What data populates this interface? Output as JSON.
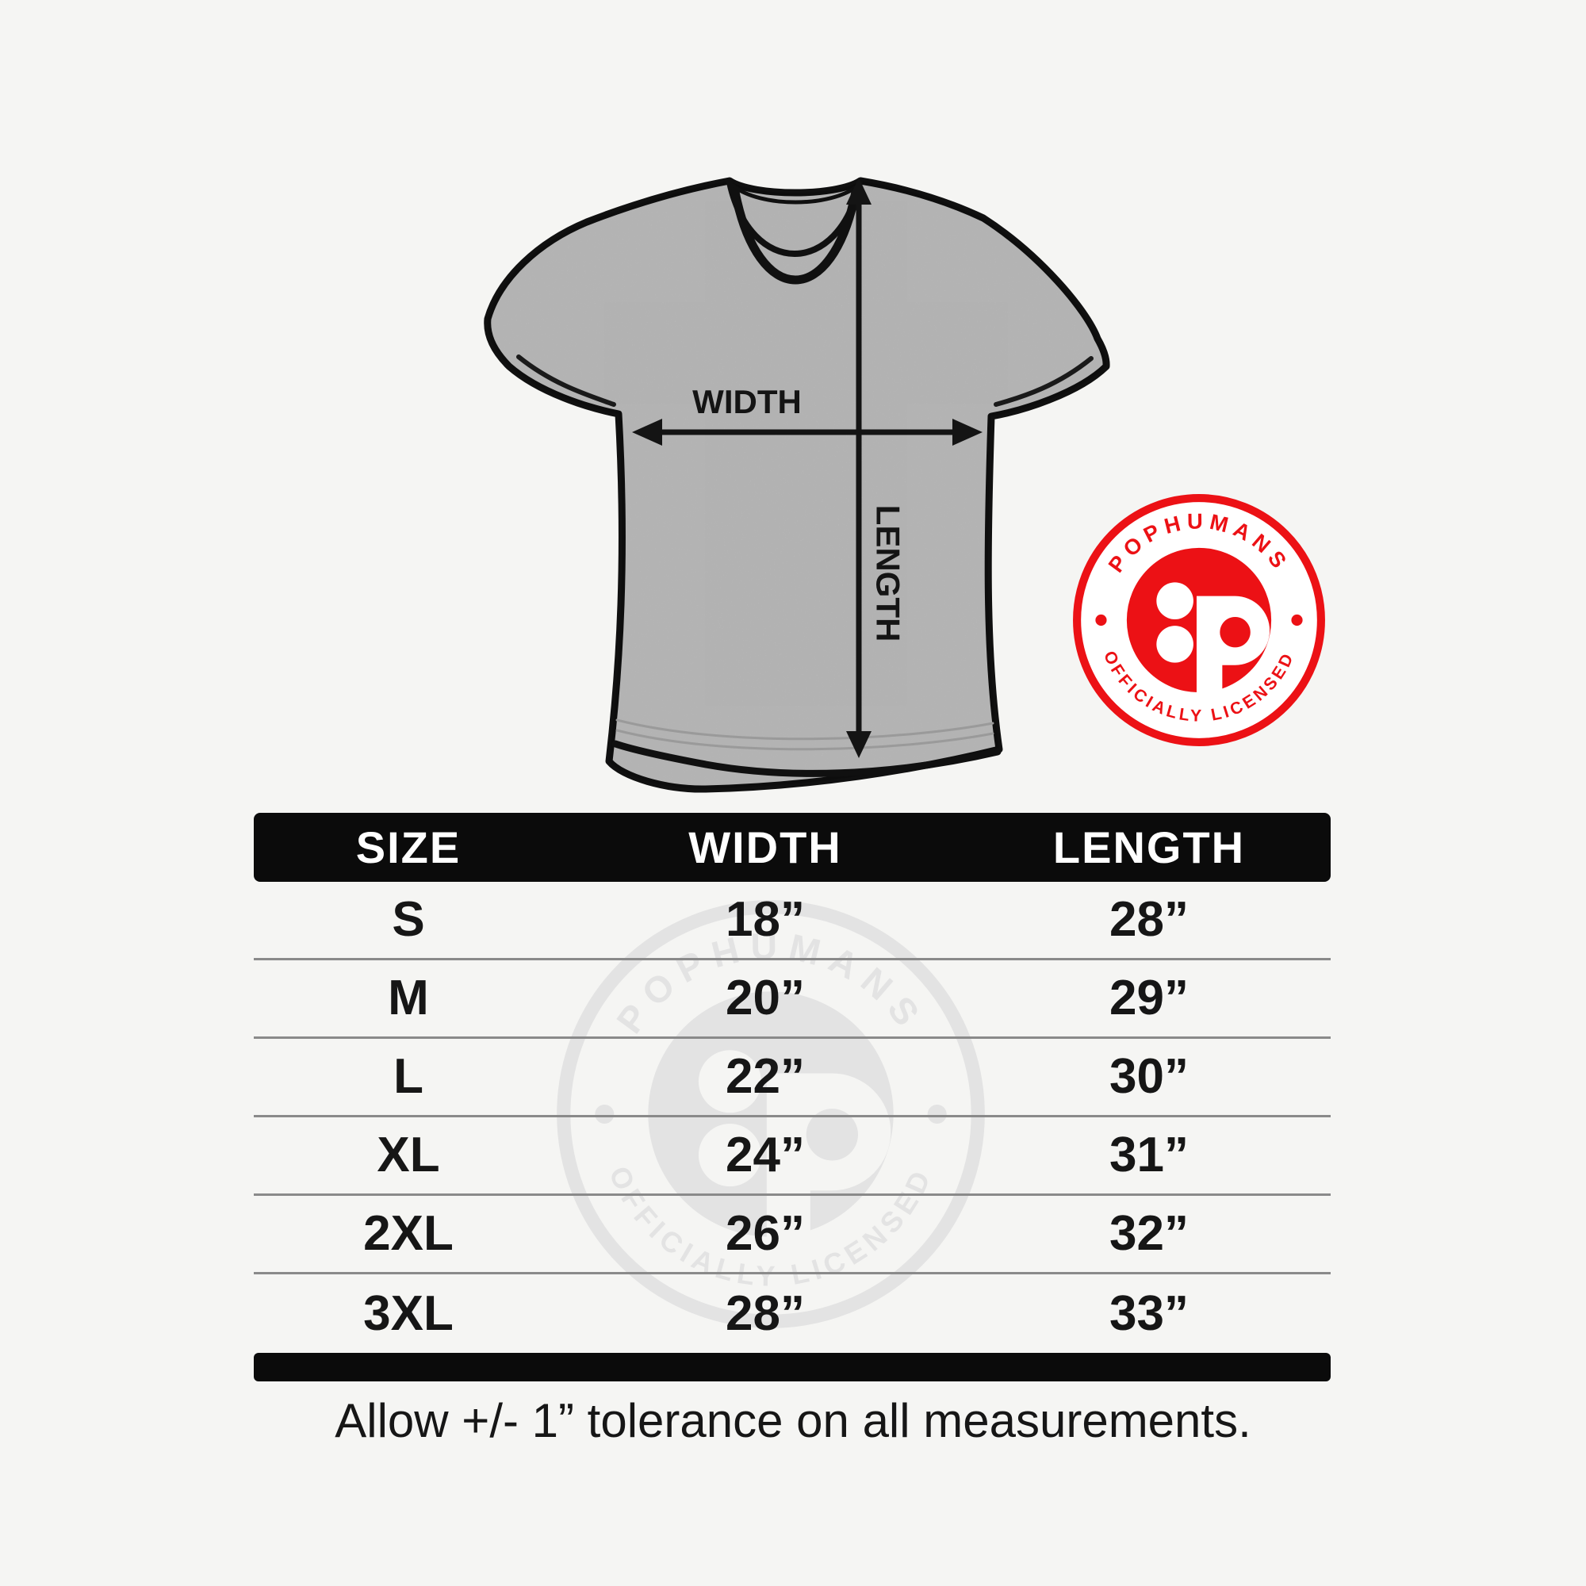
{
  "page": {
    "background": "#f5f5f3"
  },
  "shirt_diagram": {
    "width_label": "WIDTH",
    "length_label": "LENGTH",
    "shirt_color": "#cecece",
    "outline_color": "#101010"
  },
  "badge": {
    "brand_arc_text": "POPHUMANS",
    "bottom_arc_text": "OFFICIALLY LICENSED",
    "logo_letter": "P",
    "red": "#ec1115",
    "watermark_gray": "#e3e3e3"
  },
  "size_table": {
    "header": {
      "size": "SIZE",
      "width": "WIDTH",
      "length": "LENGTH"
    },
    "rows": [
      {
        "size": "S",
        "width": "18”",
        "length": "28”"
      },
      {
        "size": "M",
        "width": "20”",
        "length": "29”"
      },
      {
        "size": "L",
        "width": "22”",
        "length": "30”"
      },
      {
        "size": "XL",
        "width": "24”",
        "length": "31”"
      },
      {
        "size": "2XL",
        "width": "26”",
        "length": "32”"
      },
      {
        "size": "3XL",
        "width": "28”",
        "length": "33”"
      }
    ]
  },
  "footer": {
    "tolerance_note": "Allow +/- 1” tolerance on all measurements."
  },
  "chart_data": {
    "type": "table",
    "columns": [
      "SIZE",
      "WIDTH",
      "LENGTH"
    ],
    "rows": [
      [
        "S",
        "18”",
        "28”"
      ],
      [
        "M",
        "20”",
        "29”"
      ],
      [
        "L",
        "22”",
        "30”"
      ],
      [
        "XL",
        "24”",
        "31”"
      ],
      [
        "2XL",
        "26”",
        "32”"
      ],
      [
        "3XL",
        "28”",
        "33”"
      ]
    ],
    "units": "inches",
    "note": "Allow +/- 1” tolerance on all measurements."
  }
}
